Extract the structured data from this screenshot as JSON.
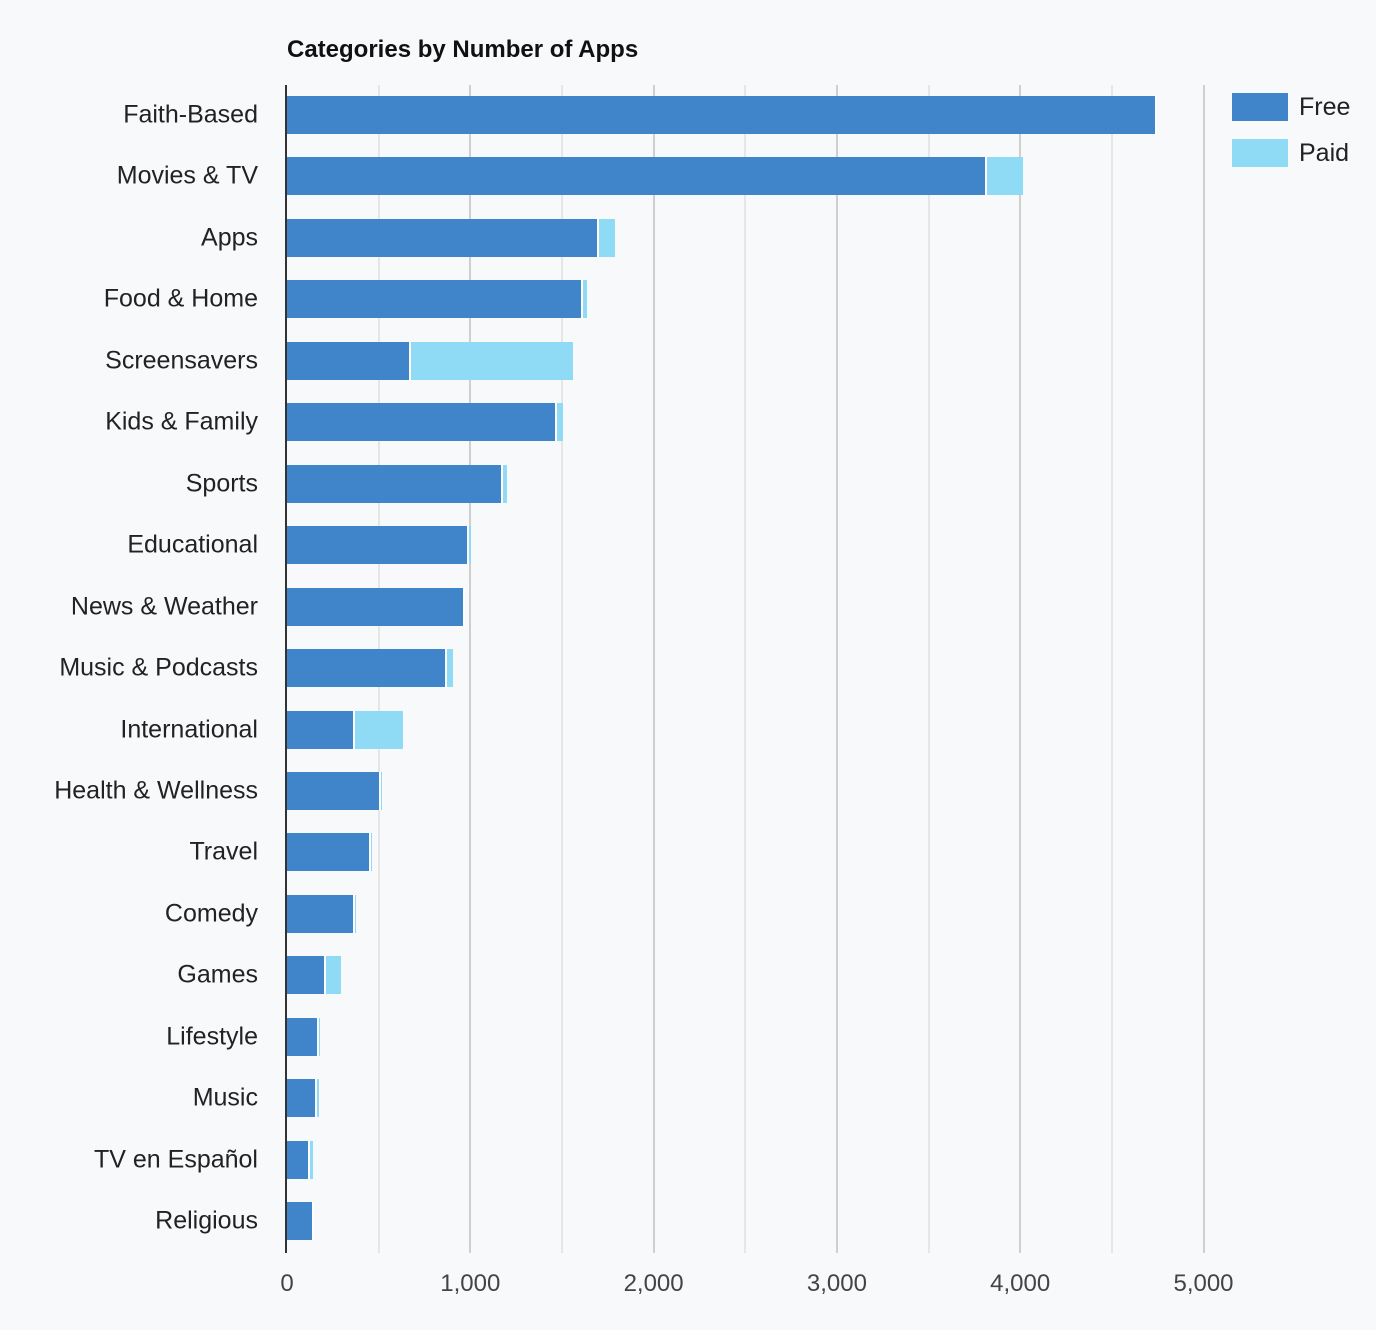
{
  "chart_data": {
    "type": "bar",
    "orientation": "horizontal",
    "stacked": true,
    "title": "Categories by Number of Apps",
    "xlabel": "",
    "ylabel": "",
    "xlim": [
      0,
      5000
    ],
    "xticks": [
      0,
      1000,
      2000,
      3000,
      4000,
      5000
    ],
    "xtick_labels": [
      "0",
      "1,000",
      "2,000",
      "3,000",
      "4,000",
      "5,000"
    ],
    "grid": true,
    "legend_position": "top-right",
    "categories": [
      "Faith-Based",
      "Movies & TV",
      "Apps",
      "Food & Home",
      "Screensavers",
      "Kids & Family",
      "Sports",
      "Educational",
      "News & Weather",
      "Music & Podcasts",
      "International",
      "Health & Wellness",
      "Travel",
      "Comedy",
      "Games",
      "Lifestyle",
      "Music",
      "TV en Español",
      "Religious"
    ],
    "series": [
      {
        "name": "Free",
        "color": "#4085ca",
        "values": [
          4737,
          3809,
          1692,
          1605,
          668,
          1463,
          1169,
          984,
          962,
          864,
          362,
          504,
          450,
          362,
          201,
          166,
          155,
          112,
          134
        ]
      },
      {
        "name": "Paid",
        "color": "#8fdaf5",
        "values": [
          8,
          207,
          98,
          33,
          893,
          44,
          33,
          21,
          11,
          43,
          273,
          16,
          16,
          17,
          96,
          16,
          17,
          32,
          10
        ]
      }
    ]
  },
  "legend": {
    "items": [
      {
        "label": "Free",
        "color": "#4085ca"
      },
      {
        "label": "Paid",
        "color": "#8fdaf5"
      }
    ]
  }
}
